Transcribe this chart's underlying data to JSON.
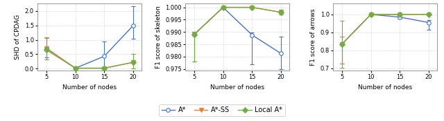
{
  "x": [
    5,
    10,
    15,
    20
  ],
  "plot1": {
    "ylabel": "SHD of CPDAG",
    "xlabel": "Number of nodes",
    "ylim": [
      -0.05,
      2.25
    ],
    "yticks": [
      0.0,
      0.5,
      1.0,
      1.5,
      2.0
    ],
    "astar": {
      "y": [
        0.7,
        0.02,
        0.43,
        1.49
      ],
      "yerr_lo": [
        0.3,
        0.02,
        0.43,
        0.45
      ],
      "yerr_hi": [
        0.38,
        0.05,
        0.5,
        0.68
      ]
    },
    "astar_ss": {
      "y": [
        0.71,
        0.02,
        0.02,
        0.22
      ],
      "yerr_lo": [
        0.38,
        0.02,
        0.02,
        0.22
      ],
      "yerr_hi": [
        0.38,
        0.02,
        0.02,
        0.28
      ]
    },
    "local_astar": {
      "y": [
        0.65,
        0.02,
        0.02,
        0.22
      ],
      "yerr_lo": [
        0.32,
        0.02,
        0.02,
        0.22
      ],
      "yerr_hi": [
        0.42,
        0.02,
        0.02,
        0.28
      ]
    }
  },
  "plot2": {
    "ylabel": "F1 score of skeleton",
    "xlabel": "Number of nodes",
    "ylim": [
      0.9745,
      1.0015
    ],
    "yticks": [
      0.975,
      0.98,
      0.985,
      0.99,
      0.995,
      1.0
    ],
    "astar": {
      "y": [
        0.989,
        1.0,
        0.9888,
        0.9813
      ],
      "yerr_lo": [
        0.011,
        0.0,
        0.012,
        0.0063
      ],
      "yerr_hi": [
        0.001,
        0.0,
        0.001,
        0.0067
      ]
    },
    "astar_ss": {
      "y": [
        0.989,
        1.0,
        1.0,
        0.998
      ],
      "yerr_lo": [
        0.011,
        0.0,
        0.0,
        0.001
      ],
      "yerr_hi": [
        0.001,
        0.0,
        0.0,
        0.001
      ]
    },
    "local_astar": {
      "y": [
        0.989,
        1.0,
        1.0,
        0.998
      ],
      "yerr_lo": [
        0.011,
        0.0,
        0.0,
        0.001
      ],
      "yerr_hi": [
        0.001,
        0.0,
        0.0,
        0.001
      ]
    }
  },
  "plot3": {
    "ylabel": "F1 score of arrows",
    "xlabel": "Number of nodes",
    "ylim": [
      0.69,
      1.06
    ],
    "yticks": [
      0.7,
      0.8,
      0.9,
      1.0
    ],
    "astar": {
      "y": [
        0.835,
        1.0,
        0.985,
        0.955
      ],
      "yerr_lo": [
        0.11,
        0.0,
        0.01,
        0.04
      ],
      "yerr_hi": [
        0.04,
        0.0,
        0.005,
        0.015
      ]
    },
    "astar_ss": {
      "y": [
        0.835,
        1.0,
        1.0,
        1.0
      ],
      "yerr_lo": [
        0.11,
        0.0,
        0.0,
        0.001
      ],
      "yerr_hi": [
        0.04,
        0.0,
        0.0,
        0.001
      ]
    },
    "local_astar": {
      "y": [
        0.835,
        1.0,
        1.0,
        1.0
      ],
      "yerr_lo": [
        0.13,
        0.0,
        0.0,
        0.001
      ],
      "yerr_hi": [
        0.13,
        0.0,
        0.0,
        0.001
      ]
    }
  },
  "colors": {
    "astar": "#4472c4",
    "astar_ss": "#ed7d31",
    "local_astar": "#70ad47"
  },
  "bg_color": "#ffffff",
  "grid_color": "#d0d0d0",
  "marker_astar": "o",
  "marker_astar_ss": "v",
  "marker_local_astar": "D"
}
